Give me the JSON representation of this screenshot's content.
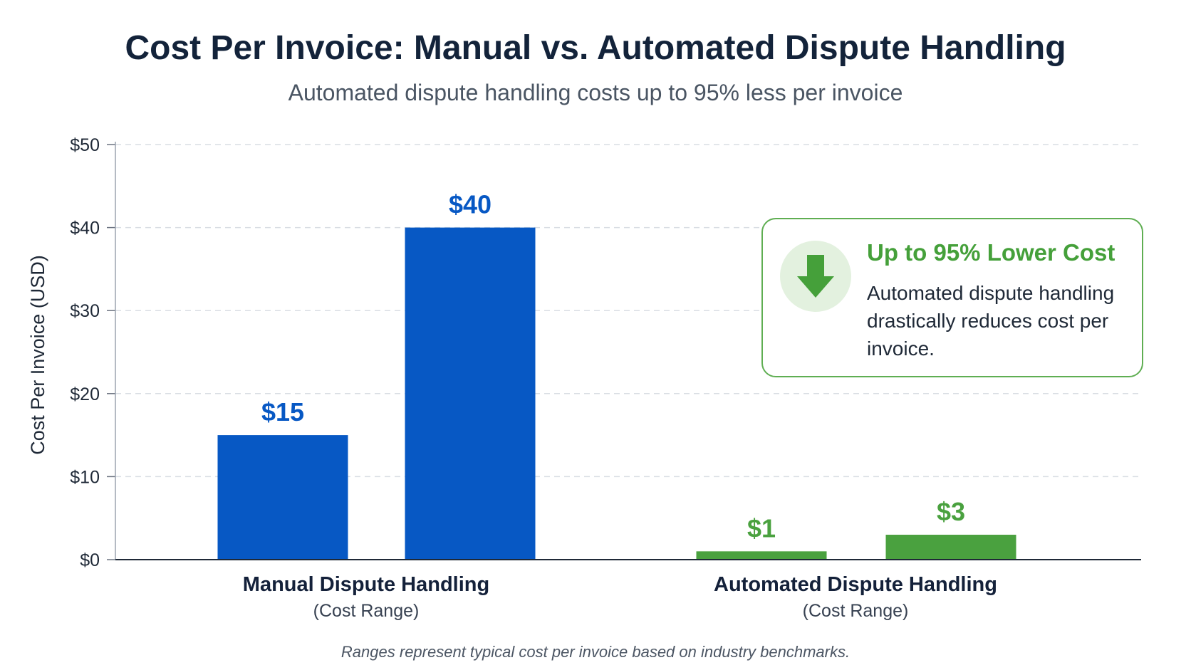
{
  "chart_data": {
    "type": "bar",
    "title": "Cost Per Invoice: Manual vs. Automated Dispute Handling",
    "subtitle": "Automated dispute handling costs up to 95% less per invoice",
    "ylabel": "Cost Per Invoice (USD)",
    "ylim": [
      0,
      50
    ],
    "yticks": [
      0,
      10,
      20,
      30,
      40,
      50
    ],
    "ytick_labels": [
      "$0",
      "$10",
      "$20",
      "$30",
      "$40",
      "$50"
    ],
    "grid": true,
    "groups": [
      {
        "name": "Manual Dispute Handling",
        "sublabel": "(Cost Range)",
        "color": "#0758c4",
        "values": [
          15,
          40
        ],
        "value_labels": [
          "$15",
          "$40"
        ]
      },
      {
        "name": "Automated Dispute Handling",
        "sublabel": "(Cost Range)",
        "color": "#4aa13f",
        "values": [
          1,
          3
        ],
        "value_labels": [
          "$1",
          "$3"
        ]
      }
    ],
    "annotation": {
      "heading": "Up to 95% Lower Cost",
      "body": "Automated dispute handling drastically reduces cost per invoice.",
      "icon": "arrow-down-icon",
      "color": "#45a03a"
    },
    "footnote": "Ranges represent typical cost per invoice based on industry benchmarks."
  }
}
